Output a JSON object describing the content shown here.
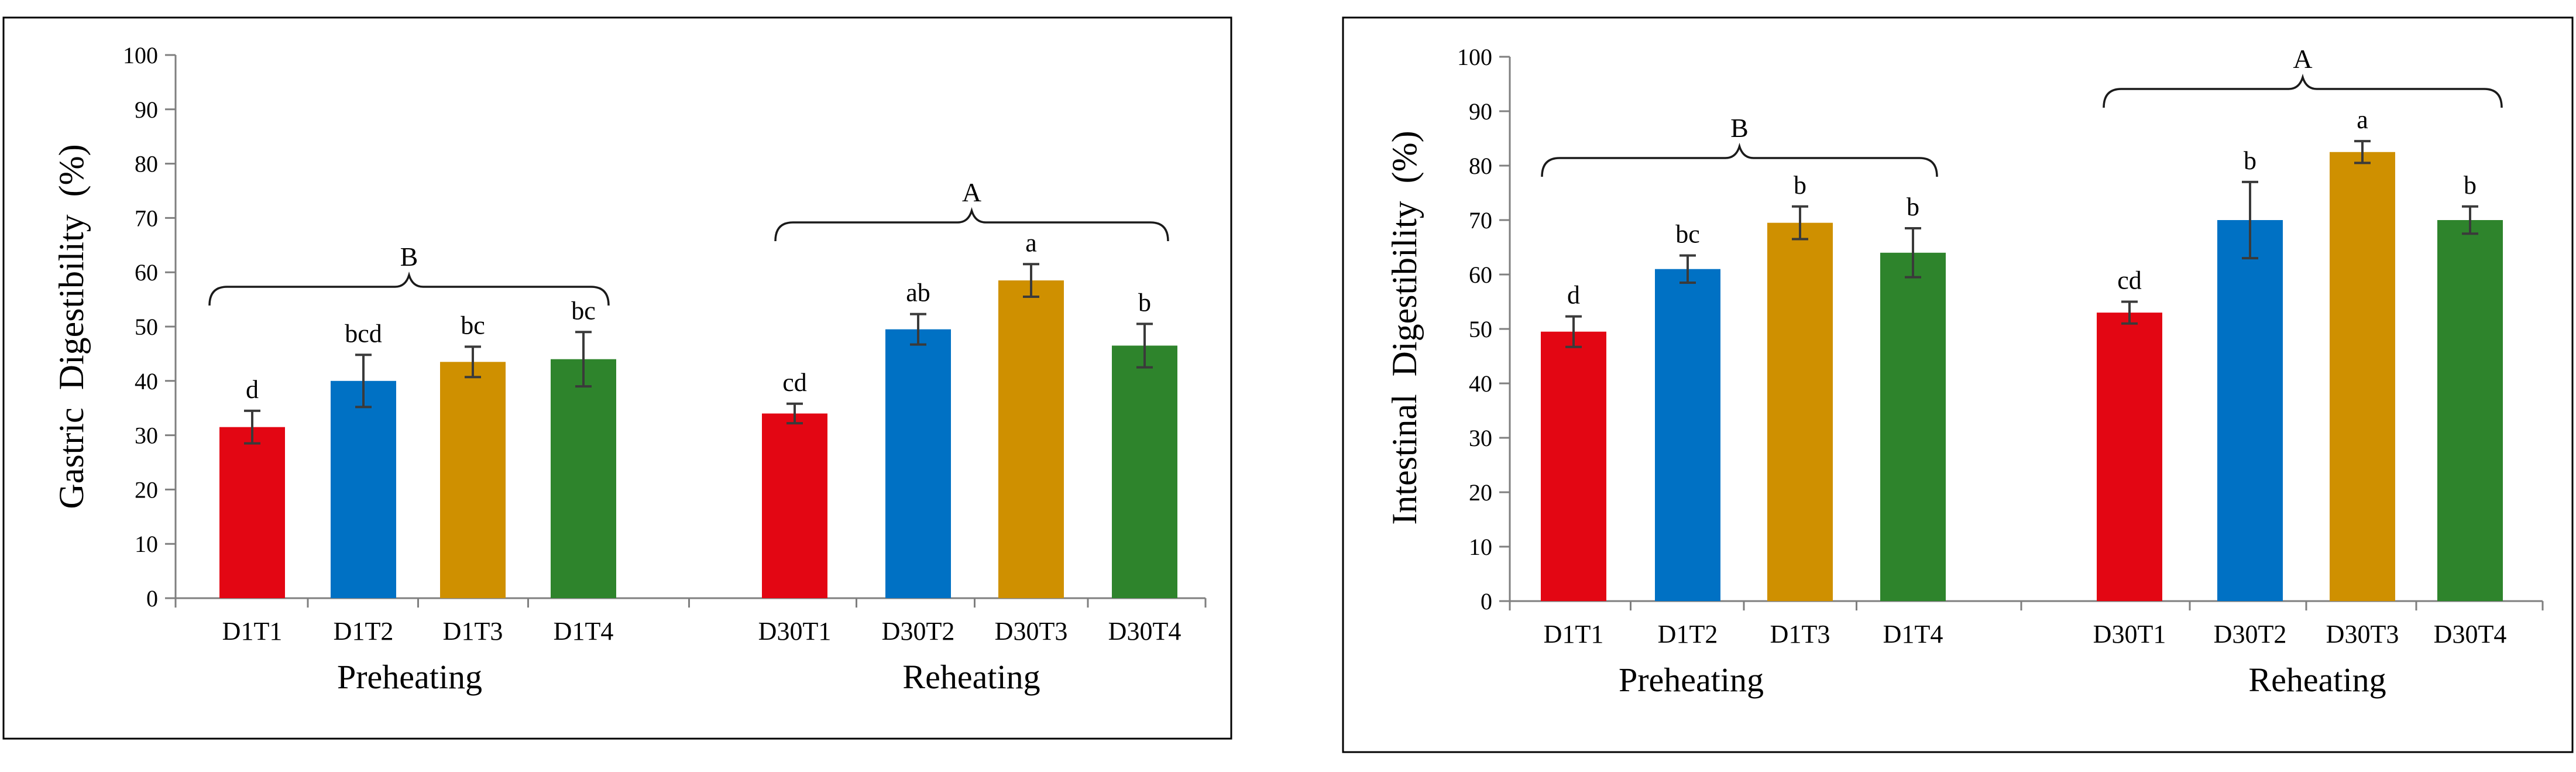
{
  "colors": {
    "T1": "#e30613",
    "T2": "#0071c4",
    "T3": "#cf9000",
    "T4": "#2e842c",
    "error": "#3a3a3a",
    "axis": "#7f7f7f",
    "frame": "#000000"
  },
  "chart_data": [
    {
      "type": "bar",
      "id": "gastric",
      "ylabel": "Gastric  Digestibility  (%)",
      "xlabel": "",
      "ylim": [
        0,
        100
      ],
      "yticks": [
        0,
        10,
        20,
        30,
        40,
        50,
        60,
        70,
        80,
        90,
        100
      ],
      "groups": [
        {
          "label": "Preheating",
          "bracket_letter": "B",
          "bars": [
            {
              "category": "D1T1",
              "value": 31.5,
              "error": 3.0,
              "letter": "d",
              "color_key": "T1"
            },
            {
              "category": "D1T2",
              "value": 40.0,
              "error": 4.8,
              "letter": "bcd",
              "color_key": "T2"
            },
            {
              "category": "D1T3",
              "value": 43.5,
              "error": 2.8,
              "letter": "bc",
              "color_key": "T3"
            },
            {
              "category": "D1T4",
              "value": 44.0,
              "error": 5.0,
              "letter": "bc",
              "color_key": "T4"
            }
          ]
        },
        {
          "label": "Reheating",
          "bracket_letter": "A",
          "bars": [
            {
              "category": "D30T1",
              "value": 34.0,
              "error": 1.8,
              "letter": "cd",
              "color_key": "T1"
            },
            {
              "category": "D30T2",
              "value": 49.5,
              "error": 2.8,
              "letter": "ab",
              "color_key": "T2"
            },
            {
              "category": "D30T3",
              "value": 58.5,
              "error": 3.0,
              "letter": "a",
              "color_key": "T3"
            },
            {
              "category": "D30T4",
              "value": 46.5,
              "error": 4.0,
              "letter": "b",
              "color_key": "T4"
            }
          ]
        }
      ]
    },
    {
      "type": "bar",
      "id": "intestinal",
      "ylabel": "Intestinal  Digestibility  (%)",
      "xlabel": "",
      "ylim": [
        0,
        100
      ],
      "yticks": [
        0,
        10,
        20,
        30,
        40,
        50,
        60,
        70,
        80,
        90,
        100
      ],
      "groups": [
        {
          "label": "Preheating",
          "bracket_letter": "B",
          "bars": [
            {
              "category": "D1T1",
              "value": 49.5,
              "error": 2.8,
              "letter": "d",
              "color_key": "T1"
            },
            {
              "category": "D1T2",
              "value": 61.0,
              "error": 2.5,
              "letter": "bc",
              "color_key": "T2"
            },
            {
              "category": "D1T3",
              "value": 69.5,
              "error": 3.0,
              "letter": "b",
              "color_key": "T3"
            },
            {
              "category": "D1T4",
              "value": 64.0,
              "error": 4.5,
              "letter": "b",
              "color_key": "T4"
            }
          ]
        },
        {
          "label": "Reheating",
          "bracket_letter": "A",
          "bars": [
            {
              "category": "D30T1",
              "value": 53.0,
              "error": 2.0,
              "letter": "cd",
              "color_key": "T1"
            },
            {
              "category": "D30T2",
              "value": 70.0,
              "error": 7.0,
              "letter": "b",
              "color_key": "T2"
            },
            {
              "category": "D30T3",
              "value": 82.5,
              "error": 2.0,
              "letter": "a",
              "color_key": "T3"
            },
            {
              "category": "D30T4",
              "value": 70.0,
              "error": 2.5,
              "letter": "b",
              "color_key": "T4"
            }
          ]
        }
      ]
    }
  ]
}
